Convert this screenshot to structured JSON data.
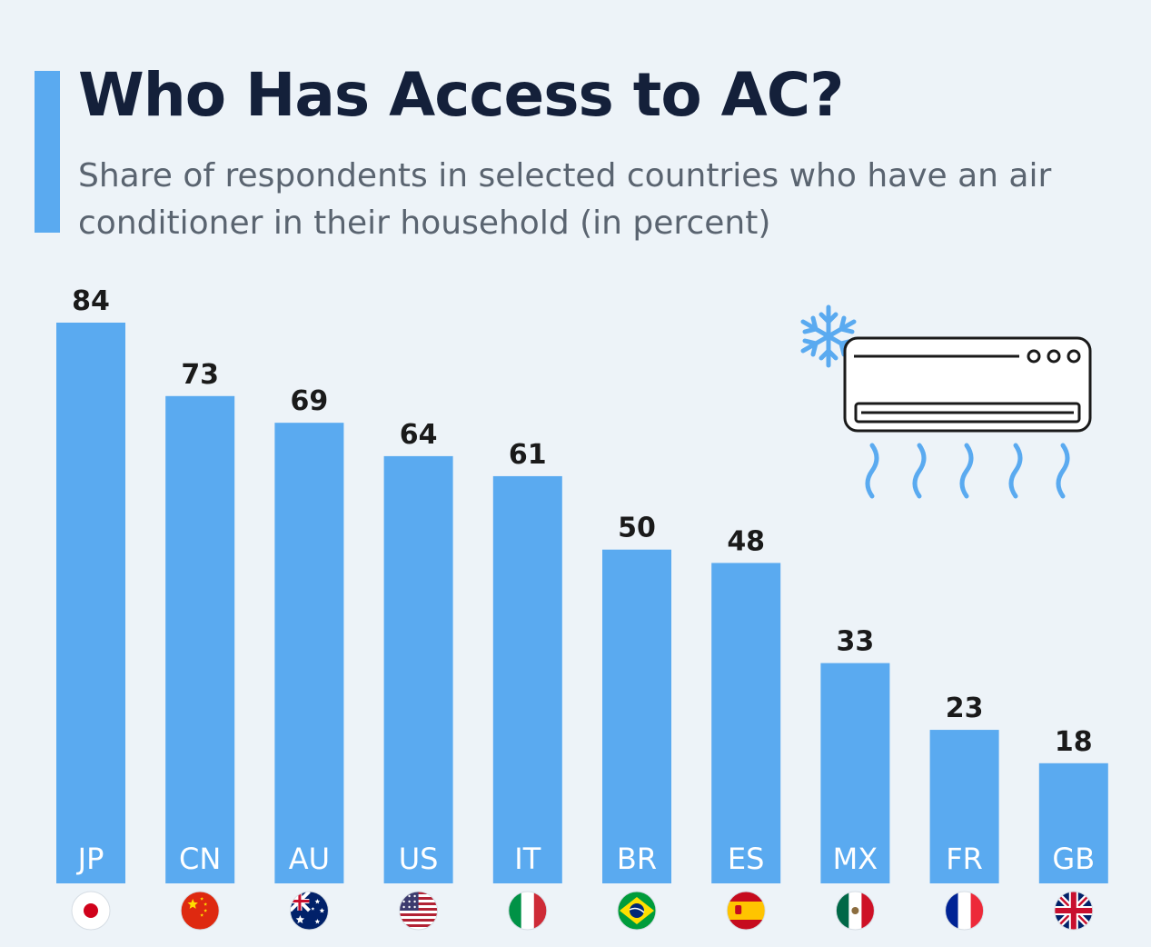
{
  "header": {
    "title": "Who Has Access to AC?",
    "subtitle": "Share of respondents in selected countries who have an air conditioner in their household (in percent)"
  },
  "colors": {
    "bar": "#5aaaf0",
    "accent": "#5aaaf0",
    "title": "#14203a",
    "icon": "#1a1a1a",
    "snow": "#5aaaf0"
  },
  "icons": [
    "snowflake-icon",
    "air-conditioner-icon",
    "airflow-icon"
  ],
  "chart_data": {
    "type": "bar",
    "title": "Who Has Access to AC?",
    "subtitle": "Share of respondents in selected countries who have an air conditioner in their household (in percent)",
    "categories": [
      "JP",
      "CN",
      "AU",
      "US",
      "IT",
      "BR",
      "ES",
      "MX",
      "FR",
      "GB"
    ],
    "values": [
      84,
      73,
      69,
      64,
      61,
      50,
      48,
      33,
      23,
      18
    ],
    "flags": [
      "japan-flag-icon",
      "china-flag-icon",
      "australia-flag-icon",
      "usa-flag-icon",
      "italy-flag-icon",
      "brazil-flag-icon",
      "spain-flag-icon",
      "mexico-flag-icon",
      "france-flag-icon",
      "uk-flag-icon"
    ],
    "xlabel": "",
    "ylabel": "",
    "ylim": [
      0,
      84
    ],
    "grid": false,
    "legend": "none",
    "data_labels": true
  }
}
